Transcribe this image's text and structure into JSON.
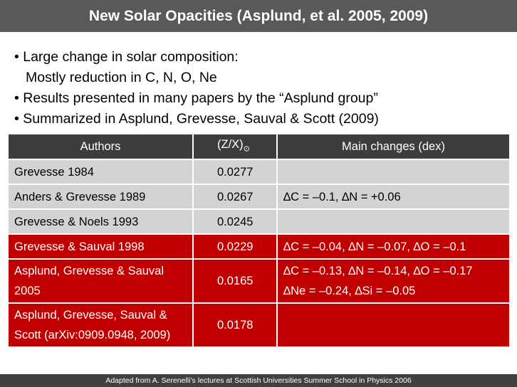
{
  "header": {
    "title": "New Solar Opacities (Asplund, et al. 2005, 2009)"
  },
  "bullets": [
    [
      "• Large change in solar composition:",
      "Mostly reduction in C, N, O, Ne"
    ],
    [
      "• Results presented in many papers by the “Asplund group”"
    ],
    [
      "• Summarized in Asplund, Grevesse, Sauval & Scott (2009)"
    ]
  ],
  "table": {
    "columns": {
      "authors": "Authors",
      "ratio": {
        "text": "(Z/X)",
        "sub": "⊙"
      },
      "changes": "Main changes (dex)"
    },
    "rows": [
      {
        "author": [
          "Grevesse 1984"
        ],
        "ratio": "0.0277",
        "changes": [],
        "fill": "#d3d3d3",
        "text_color": "#000000"
      },
      {
        "author": [
          "Anders & Grevesse 1989"
        ],
        "ratio": "0.0267",
        "changes": [
          "∆C = –0.1, ∆N = +0.06"
        ],
        "fill": "#d3d3d3",
        "text_color": "#000000"
      },
      {
        "author": [
          "Grevesse & Noels 1993"
        ],
        "ratio": "0.0245",
        "changes": [],
        "fill": "#d3d3d3",
        "text_color": "#000000"
      },
      {
        "author": [
          "Grevesse & Sauval 1998"
        ],
        "ratio": "0.0229",
        "changes": [
          "∆C = –0.04, ∆N = –0.07, ∆O = –0.1"
        ],
        "fill": "#c00000",
        "text_color": "#ffffff"
      },
      {
        "author": [
          "Asplund, Grevesse & Sauval",
          "2005"
        ],
        "ratio": "0.0165",
        "changes": [
          "∆C = –0.13, ∆N = –0.14, ∆O = –0.17",
          "∆Ne = –0.24, ∆Si = –0.05"
        ],
        "fill": "#c00000",
        "text_color": "#ffffff"
      },
      {
        "author": [
          "Asplund, Grevesse, Sauval &",
          "Scott (arXiv:0909.0948, 2009)"
        ],
        "ratio": "0.0178",
        "changes": [],
        "fill": "#c00000",
        "text_color": "#ffffff"
      }
    ]
  },
  "footer": {
    "text": "Adapted from A. Serenelli’s lectures at Scottish Universities Summer School in Physics 2006"
  }
}
